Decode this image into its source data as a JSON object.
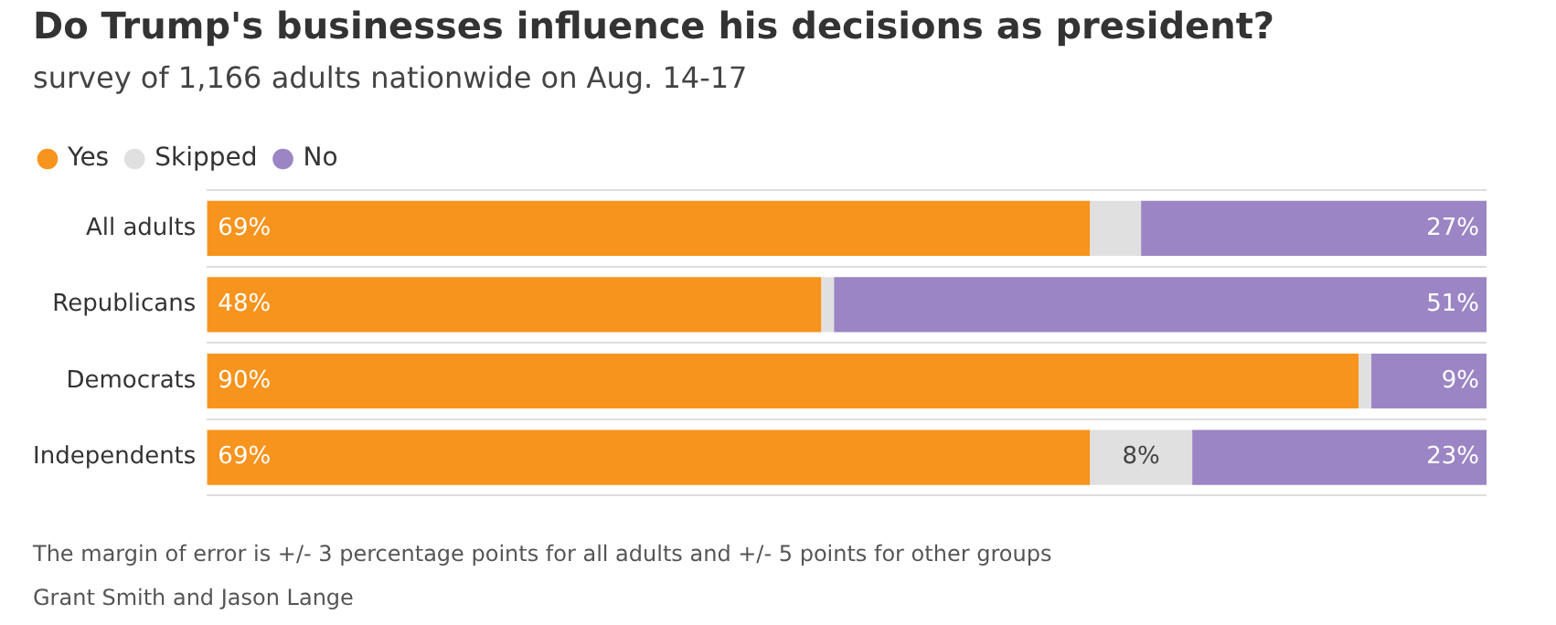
{
  "chart_data": {
    "type": "bar",
    "orientation": "horizontal",
    "stacked": true,
    "title": "Do Trump's businesses influence his decisions as president?",
    "subtitle": "survey of 1,166 adults nationwide on Aug. 14-17",
    "categories": [
      "All adults",
      "Republicans",
      "Democrats",
      "Independents"
    ],
    "series": [
      {
        "name": "Yes",
        "color": "#f7941d",
        "values": [
          69,
          48,
          90,
          69
        ],
        "value_labels": [
          "69%",
          "48%",
          "90%",
          "69%"
        ]
      },
      {
        "name": "Skipped",
        "color": "#e0e0e0",
        "values": [
          4,
          1,
          1,
          8
        ],
        "value_labels": [
          null,
          null,
          null,
          "8%"
        ]
      },
      {
        "name": "No",
        "color": "#9b85c4",
        "values": [
          27,
          51,
          9,
          23
        ],
        "value_labels": [
          "27%",
          "51%",
          "9%",
          "23%"
        ]
      }
    ],
    "xlim": [
      0,
      100
    ],
    "tick_labels": "y",
    "grid": "y",
    "legend": "top left",
    "annotations": [
      "The margin of error is +/- 3 percentage points for all adults and +/- 5 points for other groups",
      "Grant Smith and Jason Lange"
    ]
  }
}
